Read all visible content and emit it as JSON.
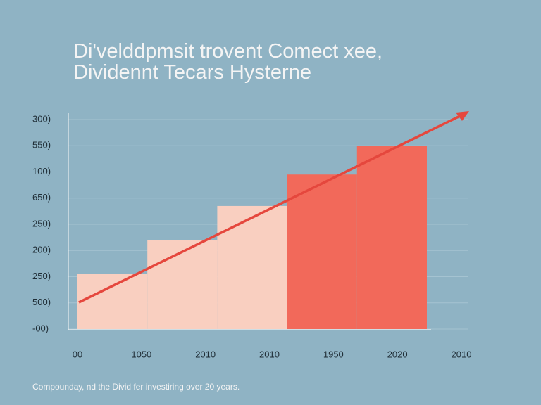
{
  "chart_data": {
    "type": "bar",
    "title_lines": [
      "Di'velddрmsit trovent Comect xee,",
      "Dividennt Tecars Hysterne"
    ],
    "categories": [
      null,
      null,
      null,
      null,
      null
    ],
    "values": [
      2.1,
      3.4,
      4.7,
      5.9,
      7.0
    ],
    "colors": [
      "#f9cfc0",
      "#f9cfc0",
      "#f9cfc0",
      "#f2695a",
      "#f2695a"
    ],
    "ylim": [
      0,
      8
    ],
    "yticks": [
      {
        "value": 0,
        "label": "-00)"
      },
      {
        "value": 1,
        "label": "500)"
      },
      {
        "value": 2,
        "label": "250)"
      },
      {
        "value": 3,
        "label": "200)"
      },
      {
        "value": 4,
        "label": "250)"
      },
      {
        "value": 5,
        "label": "650)"
      },
      {
        "value": 6,
        "label": "100)"
      },
      {
        "value": 7,
        "label": "550)"
      },
      {
        "value": 8,
        "label": "300)"
      }
    ],
    "x_labels": [
      "00",
      "1050",
      "2010",
      "2010",
      "1950",
      "2020",
      "2010"
    ],
    "grid": true,
    "note": "Compoundау, nd the Divid fer investiring over 20 years."
  }
}
